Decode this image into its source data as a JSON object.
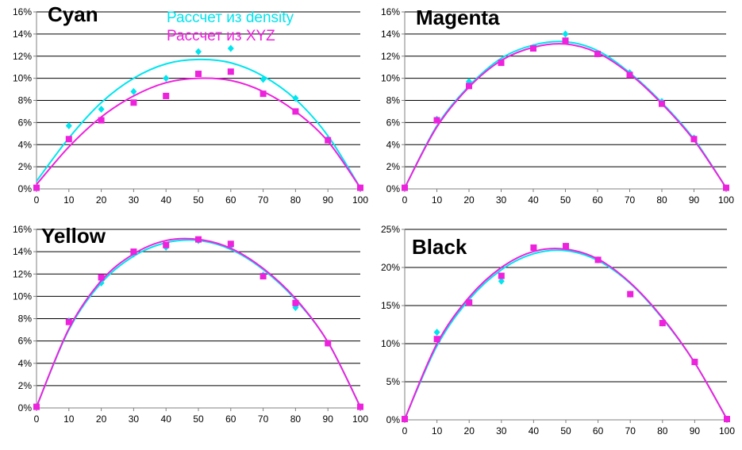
{
  "colors": {
    "density": "#00e5ee",
    "xyz": "#ee22dd",
    "grid": "#000000",
    "axis": "#808080"
  },
  "legend": {
    "items": [
      {
        "label": "Рассчет из density",
        "color": "#00e5ee"
      },
      {
        "label": "Рассчет из XYZ",
        "color": "#ee22dd"
      }
    ]
  },
  "chart_data": [
    {
      "type": "scatter",
      "title": "Cyan",
      "x_ticks": [
        "0",
        "10",
        "20",
        "30",
        "40",
        "50",
        "60",
        "70",
        "80",
        "90",
        "100"
      ],
      "y_ticks": [
        "0%",
        "2%",
        "4%",
        "6%",
        "8%",
        "10%",
        "12%",
        "14%",
        "16%"
      ],
      "xlim": [
        0,
        100
      ],
      "ylim": [
        0,
        16
      ],
      "grid": "horizontal",
      "series": [
        {
          "name": "Рассчет из density",
          "color": "#00e5ee",
          "marker": "diamond",
          "x": [
            0,
            10,
            20,
            30,
            40,
            50,
            60,
            70,
            80,
            90,
            100
          ],
          "y": [
            0.1,
            5.7,
            7.2,
            8.8,
            10.0,
            12.4,
            12.7,
            9.9,
            8.2,
            4.5,
            0.1
          ],
          "trend": [
            0.7,
            4.6,
            7.8,
            10.0,
            11.3,
            11.7,
            11.4,
            10.2,
            8.1,
            4.8,
            0.1
          ]
        },
        {
          "name": "Рассчет из XYZ",
          "color": "#ee22dd",
          "marker": "square",
          "x": [
            0,
            10,
            20,
            30,
            40,
            50,
            60,
            70,
            80,
            90,
            100
          ],
          "y": [
            0.1,
            4.5,
            6.2,
            7.8,
            8.4,
            10.4,
            10.6,
            8.6,
            7.0,
            4.4,
            0.1
          ],
          "trend": [
            0.4,
            3.8,
            6.5,
            8.4,
            9.6,
            10.0,
            9.8,
            8.8,
            7.0,
            4.3,
            0.1
          ]
        }
      ]
    },
    {
      "type": "scatter",
      "title": "Magenta",
      "x_ticks": [
        "0",
        "10",
        "20",
        "30",
        "40",
        "50",
        "60",
        "70",
        "80",
        "90",
        "100"
      ],
      "y_ticks": [
        "0%",
        "2%",
        "4%",
        "6%",
        "8%",
        "10%",
        "12%",
        "14%",
        "16%"
      ],
      "xlim": [
        0,
        100
      ],
      "ylim": [
        0,
        16
      ],
      "grid": "horizontal",
      "series": [
        {
          "name": "Рассчет из density",
          "color": "#00e5ee",
          "marker": "diamond",
          "x": [
            0,
            10,
            20,
            30,
            40,
            50,
            60,
            70,
            80,
            90,
            100
          ],
          "y": [
            0.1,
            6.3,
            9.7,
            11.5,
            12.8,
            14.0,
            12.2,
            10.5,
            7.9,
            4.6,
            0.1
          ],
          "trend": [
            0.1,
            5.7,
            9.3,
            11.8,
            13.0,
            13.3,
            12.5,
            10.5,
            7.8,
            4.5,
            0.1
          ]
        },
        {
          "name": "Рассчет из XYZ",
          "color": "#ee22dd",
          "marker": "square",
          "x": [
            0,
            10,
            20,
            30,
            40,
            50,
            60,
            70,
            80,
            90,
            100
          ],
          "y": [
            0.1,
            6.2,
            9.3,
            11.4,
            12.7,
            13.4,
            12.2,
            10.3,
            7.7,
            4.5,
            0.1
          ],
          "trend": [
            0.1,
            5.6,
            9.2,
            11.6,
            12.8,
            13.1,
            12.3,
            10.4,
            7.7,
            4.4,
            0.1
          ]
        }
      ]
    },
    {
      "type": "scatter",
      "title": "Yellow",
      "x_ticks": [
        "0",
        "10",
        "20",
        "30",
        "40",
        "50",
        "60",
        "70",
        "80",
        "90",
        "100"
      ],
      "y_ticks": [
        "0%",
        "2%",
        "4%",
        "6%",
        "8%",
        "10%",
        "12%",
        "14%",
        "16%"
      ],
      "xlim": [
        0,
        100
      ],
      "ylim": [
        0,
        16
      ],
      "grid": "horizontal",
      "series": [
        {
          "name": "Рассчет из density",
          "color": "#00e5ee",
          "marker": "diamond",
          "x": [
            0,
            10,
            20,
            30,
            40,
            50,
            60,
            70,
            80,
            90,
            100
          ],
          "y": [
            0.1,
            7.8,
            11.2,
            13.8,
            14.4,
            15.0,
            14.5,
            11.9,
            9.0,
            5.8,
            0.1
          ],
          "trend": [
            0.1,
            7.0,
            11.2,
            13.6,
            14.8,
            15.0,
            14.2,
            12.4,
            9.7,
            5.9,
            0.1
          ]
        },
        {
          "name": "Рассчет из XYZ",
          "color": "#ee22dd",
          "marker": "square",
          "x": [
            0,
            10,
            20,
            30,
            40,
            50,
            60,
            70,
            80,
            90,
            100
          ],
          "y": [
            0.1,
            7.7,
            11.7,
            14.0,
            14.6,
            15.1,
            14.7,
            11.8,
            9.4,
            5.8,
            0.1
          ],
          "trend": [
            0.1,
            7.1,
            11.4,
            13.8,
            15.0,
            15.1,
            14.3,
            12.5,
            9.8,
            5.9,
            0.1
          ]
        }
      ]
    },
    {
      "type": "scatter",
      "title": "Black",
      "x_ticks": [
        "0",
        "10",
        "20",
        "30",
        "40",
        "50",
        "60",
        "70",
        "80",
        "90",
        "100"
      ],
      "y_ticks": [
        "0%",
        "5%",
        "10%",
        "15%",
        "20%",
        "25%"
      ],
      "xlim": [
        0,
        100
      ],
      "ylim": [
        0,
        25
      ],
      "grid": "horizontal",
      "series": [
        {
          "name": "Рассчет из density",
          "color": "#00e5ee",
          "marker": "diamond",
          "x": [
            0,
            10,
            20,
            30,
            40,
            50,
            60,
            70,
            80,
            90,
            100
          ],
          "y": [
            0.1,
            11.5,
            15.5,
            18.2,
            22.5,
            22.8,
            21.0,
            16.5,
            12.7,
            7.6,
            0.1
          ],
          "trend": [
            0.1,
            9.7,
            15.8,
            19.7,
            21.8,
            22.2,
            20.9,
            17.9,
            13.3,
            7.5,
            0.1
          ]
        },
        {
          "name": "Рассчет из XYZ",
          "color": "#ee22dd",
          "marker": "square",
          "x": [
            0,
            10,
            20,
            30,
            40,
            50,
            60,
            70,
            80,
            90,
            100
          ],
          "y": [
            0.1,
            10.6,
            15.4,
            18.9,
            22.6,
            22.8,
            21.0,
            16.5,
            12.7,
            7.6,
            0.1
          ],
          "trend": [
            0.1,
            10.0,
            16.1,
            20.0,
            22.1,
            22.4,
            21.1,
            18.0,
            13.4,
            7.5,
            0.1
          ]
        }
      ]
    }
  ]
}
